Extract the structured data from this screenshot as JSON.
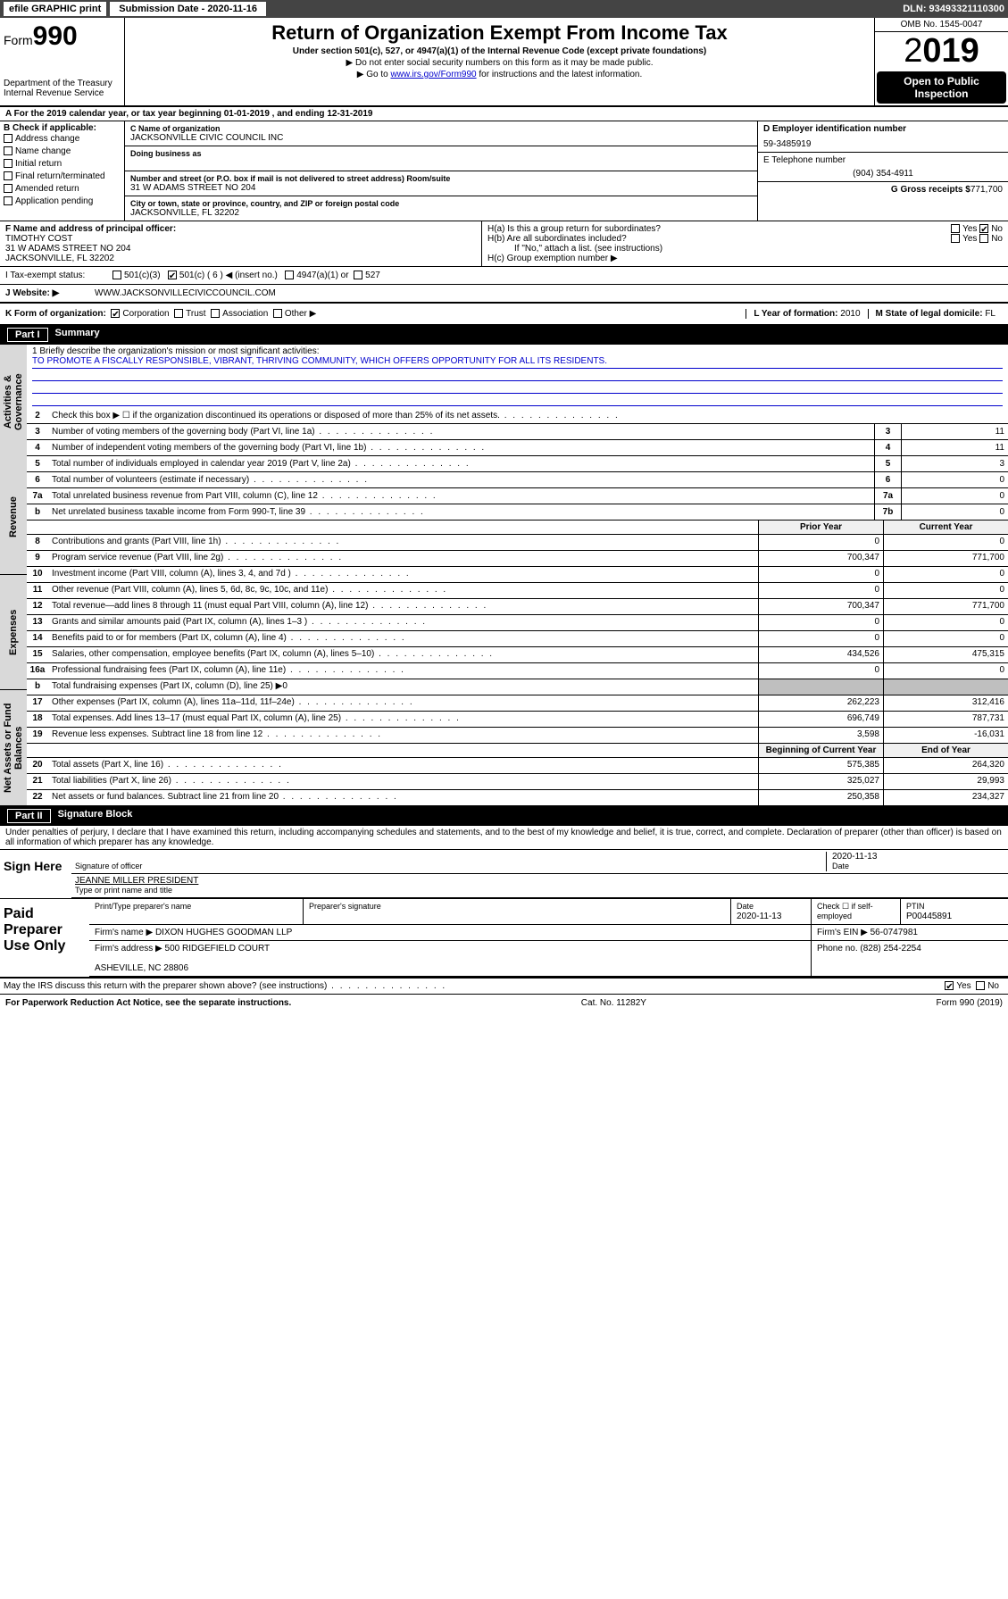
{
  "topbar": {
    "efile": "efile GRAPHIC print",
    "sub_label": "Submission Date - 2020-11-16",
    "dln": "DLN: 93493321110300"
  },
  "header": {
    "form_prefix": "Form",
    "form_num": "990",
    "dept": "Department of the Treasury\nInternal Revenue Service",
    "title": "Return of Organization Exempt From Income Tax",
    "sub1": "Under section 501(c), 527, or 4947(a)(1) of the Internal Revenue Code (except private foundations)",
    "sub2": "▶ Do not enter social security numbers on this form as it may be made public.",
    "sub3_pre": "▶ Go to ",
    "sub3_link": "www.irs.gov/Form990",
    "sub3_post": " for instructions and the latest information.",
    "omb": "OMB No. 1545-0047",
    "year": "2019",
    "open": "Open to Public Inspection"
  },
  "row_a": "A For the 2019 calendar year, or tax year beginning 01-01-2019   , and ending 12-31-2019",
  "b": {
    "label": "B Check if applicable:",
    "opts": [
      "Address change",
      "Name change",
      "Initial return",
      "Final return/terminated",
      "Amended return",
      "Application pending"
    ]
  },
  "c": {
    "name_lbl": "C Name of organization",
    "name": "JACKSONVILLE CIVIC COUNCIL INC",
    "dba_lbl": "Doing business as",
    "addr_lbl": "Number and street (or P.O. box if mail is not delivered to street address)     Room/suite",
    "addr": "31 W ADAMS STREET NO 204",
    "city_lbl": "City or town, state or province, country, and ZIP or foreign postal code",
    "city": "JACKSONVILLE, FL  32202"
  },
  "d": {
    "ein_lbl": "D Employer identification number",
    "ein": "59-3485919",
    "tel_lbl": "E Telephone number",
    "tel": "(904) 354-4911",
    "gross_lbl": "G Gross receipts $",
    "gross": "771,700"
  },
  "f": {
    "lbl": "F Name and address of principal officer:",
    "name": "TIMOTHY COST",
    "addr": "31 W ADAMS STREET NO 204\nJACKSONVILLE, FL  32202"
  },
  "h": {
    "a": "H(a)  Is this a group return for subordinates?",
    "b": "H(b)  Are all subordinates included?",
    "note": "If \"No,\" attach a list. (see instructions)",
    "c": "H(c)  Group exemption number ▶"
  },
  "tax": {
    "lbl": "I  Tax-exempt status:",
    "c3": "501(c)(3)",
    "c": "501(c) ( 6 ) ◀ (insert no.)",
    "a1": "4947(a)(1) or",
    "527": "527"
  },
  "j": {
    "lbl": "J  Website: ▶",
    "val": "WWW.JACKSONVILLECIVICCOUNCIL.COM"
  },
  "k": {
    "lbl": "K Form of organization:",
    "corp": "Corporation",
    "trust": "Trust",
    "assoc": "Association",
    "other": "Other ▶",
    "l_lbl": "L Year of formation:",
    "l_val": "2010",
    "m_lbl": "M State of legal domicile:",
    "m_val": "FL"
  },
  "part1": {
    "num": "Part I",
    "title": "Summary"
  },
  "sidebars": {
    "gov": "Activities & Governance",
    "rev": "Revenue",
    "exp": "Expenses",
    "net": "Net Assets or Fund Balances"
  },
  "mission": {
    "lbl": "1  Briefly describe the organization's mission or most significant activities:",
    "txt": "TO PROMOTE A FISCALLY RESPONSIBLE, VIBRANT, THRIVING COMMUNITY, WHICH OFFERS OPPORTUNITY FOR ALL ITS RESIDENTS."
  },
  "gov_lines": [
    {
      "n": "2",
      "t": "Check this box ▶ ☐ if the organization discontinued its operations or disposed of more than 25% of its net assets."
    },
    {
      "n": "3",
      "t": "Number of voting members of the governing body (Part VI, line 1a)",
      "b": "3",
      "v": "11"
    },
    {
      "n": "4",
      "t": "Number of independent voting members of the governing body (Part VI, line 1b)",
      "b": "4",
      "v": "11"
    },
    {
      "n": "5",
      "t": "Total number of individuals employed in calendar year 2019 (Part V, line 2a)",
      "b": "5",
      "v": "3"
    },
    {
      "n": "6",
      "t": "Total number of volunteers (estimate if necessary)",
      "b": "6",
      "v": "0"
    },
    {
      "n": "7a",
      "t": "Total unrelated business revenue from Part VIII, column (C), line 12",
      "b": "7a",
      "v": "0"
    },
    {
      "n": "b",
      "t": "Net unrelated business taxable income from Form 990-T, line 39",
      "b": "7b",
      "v": "0"
    }
  ],
  "hdr_prior": "Prior Year",
  "hdr_current": "Current Year",
  "rev_lines": [
    {
      "n": "8",
      "t": "Contributions and grants (Part VIII, line 1h)",
      "v1": "0",
      "v2": "0"
    },
    {
      "n": "9",
      "t": "Program service revenue (Part VIII, line 2g)",
      "v1": "700,347",
      "v2": "771,700"
    },
    {
      "n": "10",
      "t": "Investment income (Part VIII, column (A), lines 3, 4, and 7d )",
      "v1": "0",
      "v2": "0"
    },
    {
      "n": "11",
      "t": "Other revenue (Part VIII, column (A), lines 5, 6d, 8c, 9c, 10c, and 11e)",
      "v1": "0",
      "v2": "0"
    },
    {
      "n": "12",
      "t": "Total revenue—add lines 8 through 11 (must equal Part VIII, column (A), line 12)",
      "v1": "700,347",
      "v2": "771,700"
    }
  ],
  "exp_lines": [
    {
      "n": "13",
      "t": "Grants and similar amounts paid (Part IX, column (A), lines 1–3 )",
      "v1": "0",
      "v2": "0"
    },
    {
      "n": "14",
      "t": "Benefits paid to or for members (Part IX, column (A), line 4)",
      "v1": "0",
      "v2": "0"
    },
    {
      "n": "15",
      "t": "Salaries, other compensation, employee benefits (Part IX, column (A), lines 5–10)",
      "v1": "434,526",
      "v2": "475,315"
    },
    {
      "n": "16a",
      "t": "Professional fundraising fees (Part IX, column (A), line 11e)",
      "v1": "0",
      "v2": "0"
    },
    {
      "n": "b",
      "t": "Total fundraising expenses (Part IX, column (D), line 25) ▶0",
      "grey": true
    },
    {
      "n": "17",
      "t": "Other expenses (Part IX, column (A), lines 11a–11d, 11f–24e)",
      "v1": "262,223",
      "v2": "312,416"
    },
    {
      "n": "18",
      "t": "Total expenses. Add lines 13–17 (must equal Part IX, column (A), line 25)",
      "v1": "696,749",
      "v2": "787,731"
    },
    {
      "n": "19",
      "t": "Revenue less expenses. Subtract line 18 from line 12",
      "v1": "3,598",
      "v2": "-16,031"
    }
  ],
  "hdr_begin": "Beginning of Current Year",
  "hdr_end": "End of Year",
  "net_lines": [
    {
      "n": "20",
      "t": "Total assets (Part X, line 16)",
      "v1": "575,385",
      "v2": "264,320"
    },
    {
      "n": "21",
      "t": "Total liabilities (Part X, line 26)",
      "v1": "325,027",
      "v2": "29,993"
    },
    {
      "n": "22",
      "t": "Net assets or fund balances. Subtract line 21 from line 20",
      "v1": "250,358",
      "v2": "234,327"
    }
  ],
  "part2": {
    "num": "Part II",
    "title": "Signature Block"
  },
  "penalties": "Under penalties of perjury, I declare that I have examined this return, including accompanying schedules and statements, and to the best of my knowledge and belief, it is true, correct, and complete. Declaration of preparer (other than officer) is based on all information of which preparer has any knowledge.",
  "sign": {
    "here": "Sign Here",
    "sig_lbl": "Signature of officer",
    "date": "2020-11-13",
    "date_lbl": "Date",
    "name": "JEANNE MILLER PRESIDENT",
    "name_lbl": "Type or print name and title"
  },
  "paid": {
    "title": "Paid Preparer Use Only",
    "h1": "Print/Type preparer's name",
    "h2": "Preparer's signature",
    "h3": "Date",
    "h3v": "2020-11-13",
    "h4": "Check ☐ if self-employed",
    "h5": "PTIN",
    "h5v": "P00445891",
    "firm_lbl": "Firm's name    ▶",
    "firm": "DIXON HUGHES GOODMAN LLP",
    "ein_lbl": "Firm's EIN ▶",
    "ein": "56-0747981",
    "addr_lbl": "Firm's address ▶",
    "addr": "500 RIDGEFIELD COURT\n\nASHEVILLE, NC  28806",
    "phone_lbl": "Phone no.",
    "phone": "(828) 254-2254"
  },
  "discuss": "May the IRS discuss this return with the preparer shown above? (see instructions)",
  "footer": {
    "l": "For Paperwork Reduction Act Notice, see the separate instructions.",
    "m": "Cat. No. 11282Y",
    "r": "Form 990 (2019)"
  }
}
